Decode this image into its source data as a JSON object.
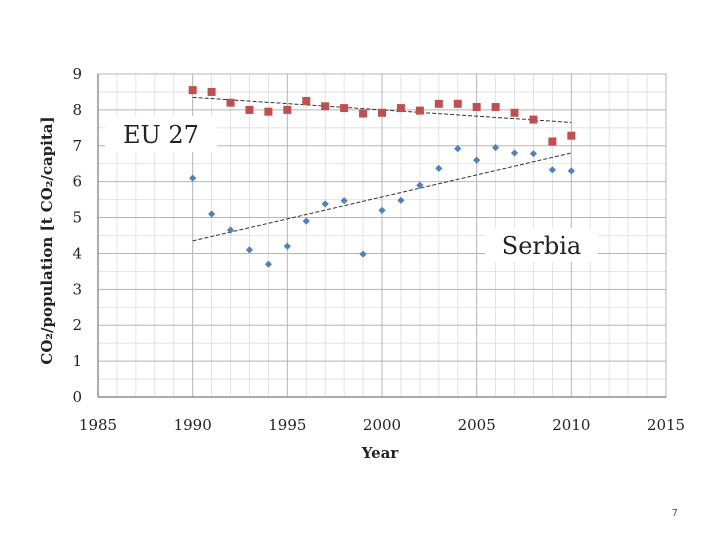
{
  "chart_data": {
    "type": "scatter",
    "title": "",
    "xlabel": "Year",
    "ylabel": "CO₂/population [t CO₂/capita]",
    "xlim": [
      1985,
      2015
    ],
    "ylim": [
      0,
      9
    ],
    "xticks": [
      1985,
      1990,
      1995,
      2000,
      2005,
      2010,
      2015
    ],
    "yticks": [
      0,
      1,
      2,
      3,
      4,
      5,
      6,
      7,
      8,
      9
    ],
    "grid": true,
    "series": [
      {
        "name": "EU 27",
        "marker": "square",
        "color": "#C0504D",
        "x": [
          1990,
          1991,
          1992,
          1993,
          1994,
          1995,
          1996,
          1997,
          1998,
          1999,
          2000,
          2001,
          2002,
          2003,
          2004,
          2005,
          2006,
          2007,
          2008,
          2009,
          2010
        ],
        "y": [
          8.55,
          8.5,
          8.2,
          8.0,
          7.95,
          8.0,
          8.25,
          8.1,
          8.05,
          7.9,
          7.92,
          8.05,
          7.98,
          8.17,
          8.17,
          8.08,
          8.08,
          7.92,
          7.73,
          7.12,
          7.28
        ],
        "trend": {
          "x": [
            1990,
            2010
          ],
          "y": [
            8.35,
            7.65
          ]
        }
      },
      {
        "name": "Serbia",
        "marker": "diamond",
        "color": "#4F81BD",
        "x": [
          1990,
          1991,
          1992,
          1993,
          1994,
          1995,
          1996,
          1997,
          1998,
          1999,
          2000,
          2001,
          2002,
          2003,
          2004,
          2005,
          2006,
          2007,
          2008,
          2009,
          2010
        ],
        "y": [
          6.1,
          5.1,
          4.65,
          4.1,
          3.7,
          4.2,
          4.9,
          5.38,
          5.47,
          3.98,
          5.2,
          5.48,
          5.9,
          6.37,
          6.92,
          6.6,
          6.95,
          6.8,
          6.78,
          6.33,
          6.3
        ],
        "trend": {
          "x": [
            1990,
            2010
          ],
          "y": [
            4.35,
            6.8
          ]
        }
      }
    ],
    "annotations": [
      {
        "text": "EU 27",
        "series": "EU 27"
      },
      {
        "text": "Serbia",
        "series": "Serbia"
      }
    ]
  },
  "page_number": "7"
}
